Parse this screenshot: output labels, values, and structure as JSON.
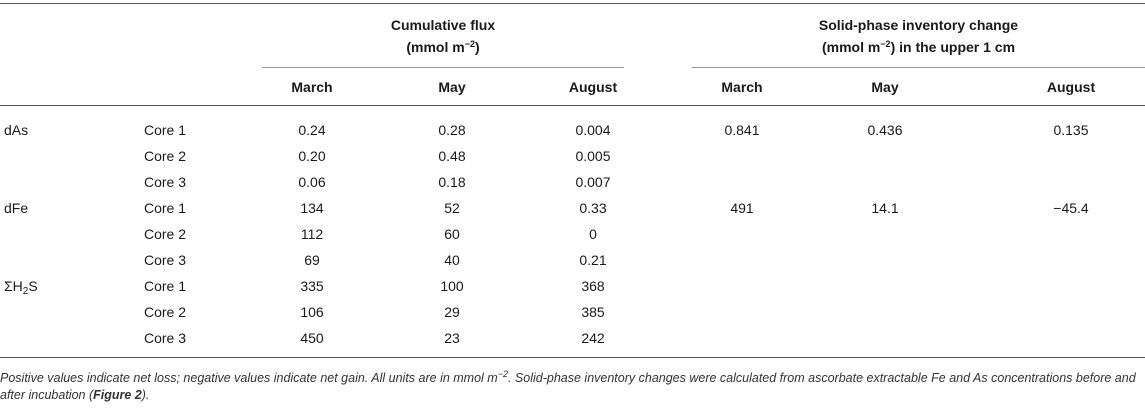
{
  "header": {
    "group1_line1": "Cumulative flux",
    "group1_line2_pre": "(mmol m",
    "group1_line2_sup": "−2",
    "group1_line2_post": ")",
    "group2_line1": "Solid-phase inventory change",
    "group2_line2_pre": "(mmol m",
    "group2_line2_sup": "−2",
    "group2_line2_post": ") in the upper 1 cm",
    "columns": [
      "March",
      "May",
      "August",
      "March",
      "May",
      "August"
    ]
  },
  "rows": [
    {
      "species": "dAs",
      "core": "Core 1",
      "flux": [
        "0.24",
        "0.28",
        "0.004"
      ],
      "inv": [
        "0.841",
        "0.436",
        "0.135"
      ]
    },
    {
      "species": "",
      "core": "Core 2",
      "flux": [
        "0.20",
        "0.48",
        "0.005"
      ],
      "inv": [
        "",
        "",
        ""
      ]
    },
    {
      "species": "",
      "core": "Core 3",
      "flux": [
        "0.06",
        "0.18",
        "0.007"
      ],
      "inv": [
        "",
        "",
        ""
      ]
    },
    {
      "species": "dFe",
      "core": "Core 1",
      "flux": [
        "134",
        "52",
        "0.33"
      ],
      "inv": [
        "491",
        "14.1",
        "−45.4"
      ]
    },
    {
      "species": "",
      "core": "Core 2",
      "flux": [
        "112",
        "60",
        "0"
      ],
      "inv": [
        "",
        "",
        ""
      ]
    },
    {
      "species": "",
      "core": "Core 3",
      "flux": [
        "69",
        "40",
        "0.21"
      ],
      "inv": [
        "",
        "",
        ""
      ]
    },
    {
      "species_pre": "ΣH",
      "species_sub": "2",
      "species_post": "S",
      "core": "Core 1",
      "flux": [
        "335",
        "100",
        "368"
      ],
      "inv": [
        "",
        "",
        ""
      ]
    },
    {
      "species": "",
      "core": "Core 2",
      "flux": [
        "106",
        "29",
        "385"
      ],
      "inv": [
        "",
        "",
        ""
      ]
    },
    {
      "species": "",
      "core": "Core 3",
      "flux": [
        "450",
        "23",
        "242"
      ],
      "inv": [
        "",
        "",
        ""
      ]
    }
  ],
  "footnote": {
    "part1": "Positive values indicate net loss; negative values indicate net gain. All units are in mmol m",
    "sup": "−2",
    "part2": ". Solid-phase inventory changes were calculated from ascorbate extractable Fe and As concentrations before and after incubation (",
    "ref": "Figure 2",
    "part3": ")."
  }
}
